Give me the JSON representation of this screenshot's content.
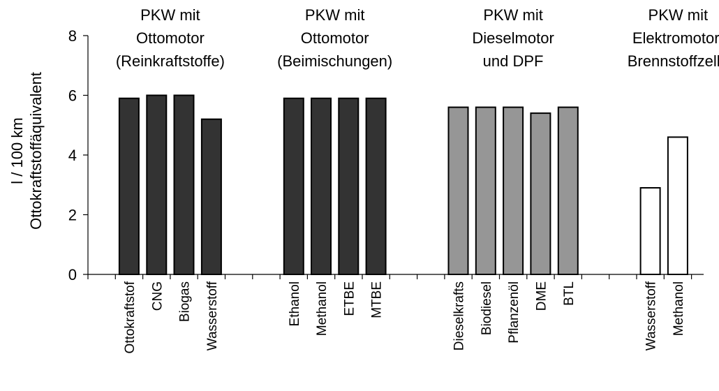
{
  "chart_data": {
    "type": "bar",
    "ylabel": [
      "l / 100 km",
      "Ottokraftstoffäquivalent"
    ],
    "ylim": [
      0,
      8
    ],
    "yticks": [
      0,
      2,
      4,
      6,
      8
    ],
    "grid": false,
    "legend": "none",
    "groups": [
      {
        "heading": [
          "PKW mit",
          "Ottomotor",
          "(Reinkraftstoffe)"
        ],
        "color": "#333333",
        "categories": [
          "Ottokraftstof",
          "CNG",
          "Biogas",
          "Wasserstoff"
        ],
        "values": [
          5.9,
          6.0,
          6.0,
          5.2
        ]
      },
      {
        "heading": [
          "PKW mit",
          "Ottomotor",
          "(Beimischungen)"
        ],
        "color": "#333333",
        "categories": [
          "Ethanol",
          "Methanol",
          "ETBE",
          "MTBE"
        ],
        "values": [
          5.9,
          5.9,
          5.9,
          5.9
        ]
      },
      {
        "heading": [
          "PKW mit",
          "Dieselmotor",
          "und DPF"
        ],
        "color": "#969696",
        "categories": [
          "Dieselkrafts",
          "Biodiesel",
          "Pflanzenöl",
          "DME",
          "BTL"
        ],
        "values": [
          5.6,
          5.6,
          5.6,
          5.4,
          5.6
        ]
      },
      {
        "heading": [
          "PKW mit",
          "Elektromotor/",
          "Brennstoffzelle"
        ],
        "color": "#ffffff",
        "categories": [
          "Wasserstoff",
          "Methanol"
        ],
        "values": [
          2.9,
          4.6
        ]
      }
    ]
  }
}
